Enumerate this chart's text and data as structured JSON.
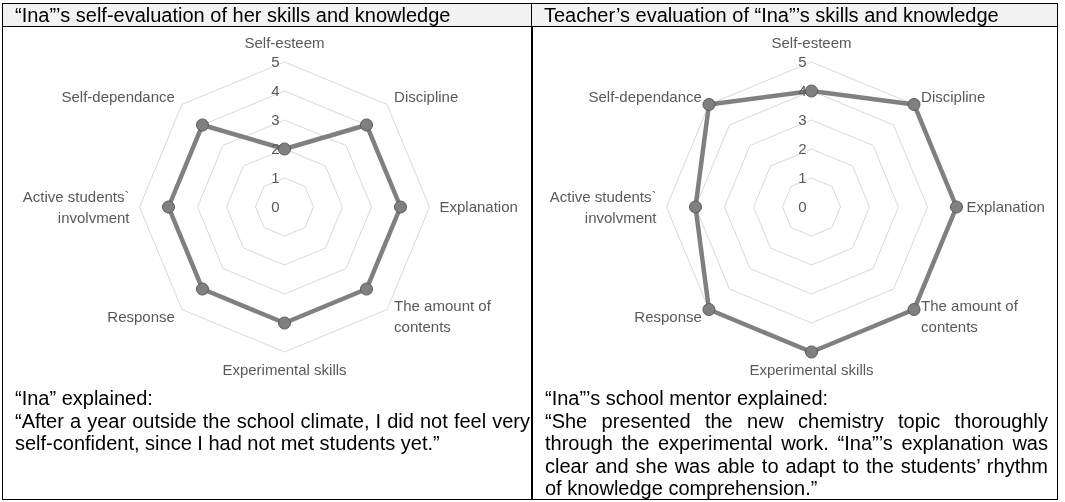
{
  "chart_data": [
    {
      "type": "radar",
      "title": "“Ina”’s self-evaluation of her skills and knowledge",
      "categories": [
        "Self-esteem",
        "Discipline",
        "Explanation",
        "The amount of contents",
        "Experimental skills",
        "Response",
        "Active students` involvment",
        "Self-dependance"
      ],
      "series": [
        {
          "color": "#808080",
          "values": [
            2,
            4,
            4,
            4,
            4,
            4,
            4,
            4
          ]
        }
      ],
      "ylim": [
        0,
        5
      ],
      "yticks": [
        0,
        1,
        2,
        3,
        4,
        5
      ],
      "grid": true,
      "marker": "circle",
      "annotations": [
        "“Ina” explained:",
        "“After a year outside the school climate, I did not feel very self-confident, since I had not met students yet.”"
      ]
    },
    {
      "type": "radar",
      "title": "Teacher’s evaluation of “Ina”’s skills and knowledge",
      "categories": [
        "Self-esteem",
        "Discipline",
        "Explanation",
        "The amount of contents",
        "Experimental skills",
        "Response",
        "Active students` involvment",
        "Self-dependance"
      ],
      "series": [
        {
          "color": "#808080",
          "values": [
            4,
            5,
            5,
            5,
            5,
            5,
            4,
            5
          ]
        }
      ],
      "ylim": [
        0,
        5
      ],
      "yticks": [
        0,
        1,
        2,
        3,
        4,
        5
      ],
      "grid": true,
      "marker": "circle",
      "annotations": [
        "“Ina”’s school mentor explained:",
        "“She presented the new chemistry topic thoroughly through the experimental work. “Ina”’s explanation was clear and she was able to adapt to the students’ rhythm of knowledge comprehension.”"
      ]
    }
  ]
}
